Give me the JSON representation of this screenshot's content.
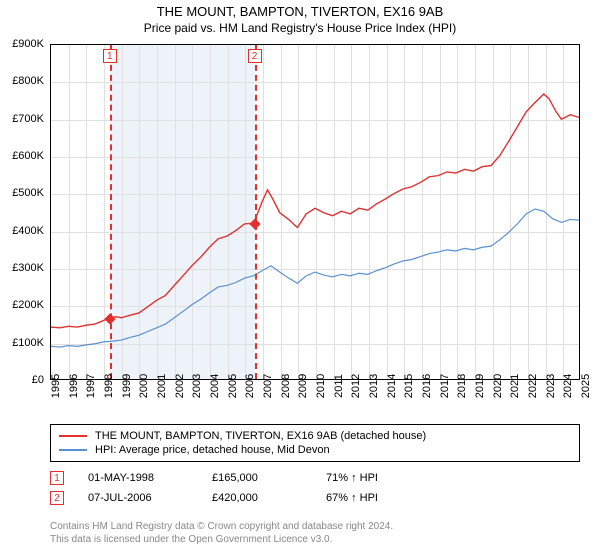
{
  "title": "THE MOUNT, BAMPTON, TIVERTON, EX16 9AB",
  "subtitle": "Price paid vs. HM Land Registry's House Price Index (HPI)",
  "chart": {
    "type": "line",
    "background_color": "#ffffff",
    "grid_color": "#e0e0e0",
    "border_color": "#000000",
    "shade_color": "#eef3fa",
    "marker_color": "#e03030",
    "xlim": [
      1995,
      2025
    ],
    "ylim": [
      0,
      900
    ],
    "y_ticks": [
      0,
      100,
      200,
      300,
      400,
      500,
      600,
      700,
      800,
      900
    ],
    "y_tick_labels": [
      "£0",
      "£100K",
      "£200K",
      "£300K",
      "£400K",
      "£500K",
      "£600K",
      "£700K",
      "£800K",
      "£900K"
    ],
    "x_ticks": [
      1995,
      1996,
      1997,
      1998,
      1999,
      2000,
      2001,
      2002,
      2003,
      2004,
      2005,
      2006,
      2007,
      2008,
      2009,
      2010,
      2011,
      2012,
      2013,
      2014,
      2015,
      2016,
      2017,
      2018,
      2019,
      2020,
      2021,
      2022,
      2023,
      2024,
      2025
    ],
    "y_tick_fontsize": 11,
    "x_tick_fontsize": 11,
    "x_tick_rotation": -90,
    "shade_band": [
      1998.33,
      2006.52
    ],
    "markers": [
      {
        "label": "1",
        "x": 1998.33,
        "y_box": 870
      },
      {
        "label": "2",
        "x": 2006.52,
        "y_box": 870
      }
    ],
    "sale_points": [
      {
        "x": 1998.33,
        "y": 165
      },
      {
        "x": 2006.52,
        "y": 420
      }
    ],
    "series": [
      {
        "name": "price_paid",
        "color": "#e03030",
        "line_width": 1.4,
        "data": [
          [
            1995.0,
            140
          ],
          [
            1995.5,
            138
          ],
          [
            1996.0,
            142
          ],
          [
            1996.5,
            140
          ],
          [
            1997.0,
            145
          ],
          [
            1997.5,
            148
          ],
          [
            1998.0,
            158
          ],
          [
            1998.33,
            165
          ],
          [
            1998.7,
            168
          ],
          [
            1999.0,
            165
          ],
          [
            1999.5,
            172
          ],
          [
            2000.0,
            178
          ],
          [
            2000.5,
            195
          ],
          [
            2001.0,
            212
          ],
          [
            2001.5,
            225
          ],
          [
            2002.0,
            252
          ],
          [
            2002.5,
            278
          ],
          [
            2003.0,
            305
          ],
          [
            2003.5,
            328
          ],
          [
            2004.0,
            355
          ],
          [
            2004.5,
            378
          ],
          [
            2005.0,
            385
          ],
          [
            2005.5,
            400
          ],
          [
            2006.0,
            418
          ],
          [
            2006.52,
            420
          ],
          [
            2007.0,
            478
          ],
          [
            2007.3,
            510
          ],
          [
            2007.6,
            485
          ],
          [
            2008.0,
            448
          ],
          [
            2008.5,
            430
          ],
          [
            2009.0,
            408
          ],
          [
            2009.5,
            445
          ],
          [
            2010.0,
            460
          ],
          [
            2010.5,
            448
          ],
          [
            2011.0,
            440
          ],
          [
            2011.5,
            452
          ],
          [
            2012.0,
            445
          ],
          [
            2012.5,
            460
          ],
          [
            2013.0,
            455
          ],
          [
            2013.5,
            472
          ],
          [
            2014.0,
            485
          ],
          [
            2014.5,
            500
          ],
          [
            2015.0,
            512
          ],
          [
            2015.5,
            518
          ],
          [
            2016.0,
            530
          ],
          [
            2016.5,
            545
          ],
          [
            2017.0,
            548
          ],
          [
            2017.5,
            558
          ],
          [
            2018.0,
            555
          ],
          [
            2018.5,
            565
          ],
          [
            2019.0,
            560
          ],
          [
            2019.5,
            572
          ],
          [
            2020.0,
            575
          ],
          [
            2020.5,
            602
          ],
          [
            2021.0,
            640
          ],
          [
            2021.5,
            680
          ],
          [
            2022.0,
            720
          ],
          [
            2022.5,
            745
          ],
          [
            2023.0,
            768
          ],
          [
            2023.3,
            755
          ],
          [
            2023.7,
            720
          ],
          [
            2024.0,
            700
          ],
          [
            2024.5,
            712
          ],
          [
            2025.0,
            705
          ]
        ]
      },
      {
        "name": "hpi",
        "color": "#5a8fd0",
        "line_width": 1.2,
        "data": [
          [
            1995.0,
            88
          ],
          [
            1995.5,
            86
          ],
          [
            1996.0,
            90
          ],
          [
            1996.5,
            88
          ],
          [
            1997.0,
            92
          ],
          [
            1997.5,
            95
          ],
          [
            1998.0,
            100
          ],
          [
            1998.5,
            102
          ],
          [
            1999.0,
            105
          ],
          [
            1999.5,
            112
          ],
          [
            2000.0,
            118
          ],
          [
            2000.5,
            128
          ],
          [
            2001.0,
            138
          ],
          [
            2001.5,
            148
          ],
          [
            2002.0,
            165
          ],
          [
            2002.5,
            182
          ],
          [
            2003.0,
            200
          ],
          [
            2003.5,
            215
          ],
          [
            2004.0,
            232
          ],
          [
            2004.5,
            248
          ],
          [
            2005.0,
            252
          ],
          [
            2005.5,
            260
          ],
          [
            2006.0,
            272
          ],
          [
            2006.5,
            278
          ],
          [
            2007.0,
            292
          ],
          [
            2007.5,
            305
          ],
          [
            2008.0,
            288
          ],
          [
            2008.5,
            272
          ],
          [
            2009.0,
            258
          ],
          [
            2009.5,
            278
          ],
          [
            2010.0,
            288
          ],
          [
            2010.5,
            280
          ],
          [
            2011.0,
            275
          ],
          [
            2011.5,
            282
          ],
          [
            2012.0,
            278
          ],
          [
            2012.5,
            285
          ],
          [
            2013.0,
            282
          ],
          [
            2013.5,
            292
          ],
          [
            2014.0,
            300
          ],
          [
            2014.5,
            310
          ],
          [
            2015.0,
            318
          ],
          [
            2015.5,
            322
          ],
          [
            2016.0,
            330
          ],
          [
            2016.5,
            338
          ],
          [
            2017.0,
            342
          ],
          [
            2017.5,
            348
          ],
          [
            2018.0,
            345
          ],
          [
            2018.5,
            352
          ],
          [
            2019.0,
            348
          ],
          [
            2019.5,
            355
          ],
          [
            2020.0,
            358
          ],
          [
            2020.5,
            375
          ],
          [
            2021.0,
            395
          ],
          [
            2021.5,
            418
          ],
          [
            2022.0,
            445
          ],
          [
            2022.5,
            458
          ],
          [
            2023.0,
            452
          ],
          [
            2023.5,
            432
          ],
          [
            2024.0,
            422
          ],
          [
            2024.5,
            430
          ],
          [
            2025.0,
            428
          ]
        ]
      }
    ]
  },
  "legend": {
    "items": [
      {
        "color": "#e03030",
        "label": "THE MOUNT, BAMPTON, TIVERTON, EX16 9AB (detached house)"
      },
      {
        "color": "#5a8fd0",
        "label": "HPI: Average price, detached house, Mid Devon"
      }
    ],
    "fontsize": 11
  },
  "sales": [
    {
      "marker": "1",
      "date": "01-MAY-1998",
      "price": "£165,000",
      "pct": "71% ↑ HPI"
    },
    {
      "marker": "2",
      "date": "07-JUL-2006",
      "price": "£420,000",
      "pct": "67% ↑ HPI"
    }
  ],
  "footer_line1": "Contains HM Land Registry data © Crown copyright and database right 2024.",
  "footer_line2": "This data is licensed under the Open Government Licence v3.0."
}
